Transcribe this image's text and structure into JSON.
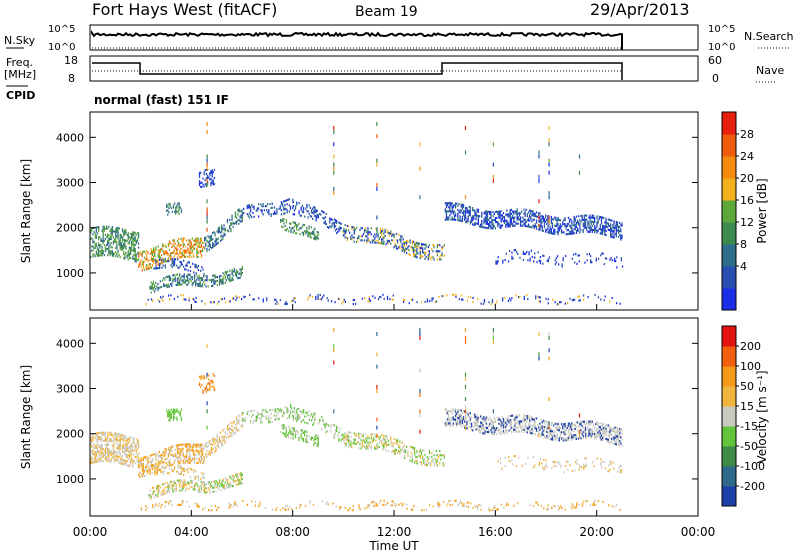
{
  "header": {
    "station": "Fort Hays West (fitACF)",
    "beam": "Beam 19",
    "date": "29/Apr/2013"
  },
  "top_panels": {
    "nsky_label": "N.Sky",
    "nsky_ticks": [
      "10^5",
      "10^0"
    ],
    "nsearch_label": "N.Search",
    "nsearch_ticks": [
      "10^5",
      "10^0"
    ],
    "freq_label": "Freq.",
    "freq_unit": "[MHz]",
    "freq_ticks": [
      "18",
      "8"
    ],
    "nave_label": "Nave",
    "nave_ticks": [
      "60",
      "0"
    ],
    "cpid_label": "CPID",
    "cpid_value": "normal (fast) 151 IF"
  },
  "chart_data": [
    {
      "type": "heatmap",
      "name": "power",
      "ylabel": "Slant Range [km]",
      "yticks": [
        "4000",
        "3000",
        "2000",
        "1000"
      ],
      "ylim": [
        180,
        4560
      ],
      "xlim": [
        0,
        24
      ],
      "colorbar": {
        "label": "Power [dB]",
        "ticks": [
          "28",
          "24",
          "20",
          "16",
          "12",
          "8",
          "4"
        ],
        "colors": [
          "#1a2ee8",
          "#2a4fb0",
          "#2f6e8a",
          "#3d8a4e",
          "#5ea83a",
          "#f2b01e",
          "#f58a10",
          "#f05a0c",
          "#e81e0f"
        ]
      }
    },
    {
      "type": "heatmap",
      "name": "velocity",
      "ylabel": "Slant Range [km]",
      "yticks": [
        "4000",
        "3000",
        "2000",
        "1000"
      ],
      "ylim": [
        180,
        4560
      ],
      "xlim": [
        0,
        24
      ],
      "colorbar": {
        "label": "Velocity [m s⁻¹]",
        "ticks": [
          "200",
          "100",
          "50",
          "15",
          "-15",
          "-50",
          "-100",
          "-200"
        ],
        "colors": [
          "#1d3fa8",
          "#2f6a8c",
          "#3f8a48",
          "#62c43a",
          "#c9c9c1",
          "#f0b43c",
          "#f59a18",
          "#f0600e",
          "#e3150e"
        ]
      }
    }
  ],
  "xaxis": {
    "label": "Time UT",
    "ticks": [
      "00:00",
      "04:00",
      "08:00",
      "12:00",
      "16:00",
      "20:00",
      "00:00"
    ]
  }
}
